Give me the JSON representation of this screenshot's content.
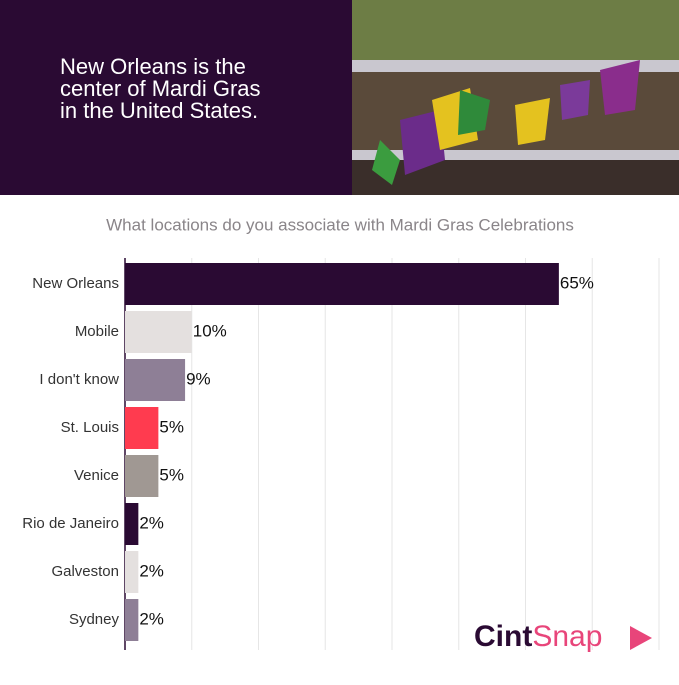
{
  "header": {
    "headline": [
      "New Orleans is the",
      "center of Mardi Gras",
      "in the United States."
    ]
  },
  "chart_data": {
    "type": "bar",
    "orientation": "horizontal",
    "title": "What locations do you associate with Mardi Gras Celebrations",
    "categories": [
      "New Orleans",
      "Mobile",
      "I don't know",
      "St. Louis",
      "Venice",
      "Rio de Janeiro",
      "Galveston",
      "Sydney"
    ],
    "values": [
      65,
      10,
      9,
      5,
      5,
      2,
      2,
      2
    ],
    "value_labels": [
      "65%",
      "10%",
      "9%",
      "5%",
      "5%",
      "2%",
      "2%",
      "2%"
    ],
    "colors": [
      "#2a0a33",
      "#e4e0df",
      "#8e7f96",
      "#ff3b4f",
      "#a09893",
      "#2a0a33",
      "#e4e0df",
      "#8e7f96"
    ],
    "xlim": [
      0,
      80
    ],
    "xticks": [
      0,
      10,
      20,
      30,
      40,
      50,
      60,
      70,
      80
    ],
    "grid": true
  },
  "logo": {
    "first": "Cint",
    "second": "Snap"
  }
}
